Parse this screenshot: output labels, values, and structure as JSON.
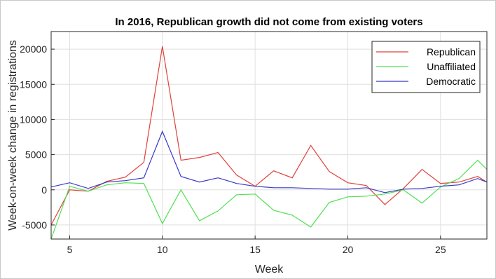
{
  "chart_data": {
    "type": "line",
    "title": "In 2016, Republican growth did not come from existing voters",
    "xlabel": "Week",
    "ylabel": "Week-on-week change in registrations",
    "xlim": [
      4,
      27.5
    ],
    "ylim": [
      -7000,
      22500
    ],
    "xticks": [
      5,
      10,
      15,
      20,
      25
    ],
    "yticks": [
      -5000,
      0,
      5000,
      10000,
      15000,
      20000
    ],
    "grid": true,
    "legend_position": "top-right",
    "x": [
      4,
      5,
      6,
      7,
      8,
      9,
      10,
      11,
      12,
      13,
      14,
      15,
      16,
      17,
      18,
      19,
      20,
      21,
      22,
      23,
      24,
      25,
      26,
      27,
      27.5
    ],
    "series": [
      {
        "name": "Republican",
        "color": "#e0403a",
        "values": [
          -5000,
          0,
          -200,
          1200,
          1800,
          3900,
          20400,
          4200,
          4600,
          5300,
          2100,
          500,
          2700,
          1700,
          6300,
          2600,
          1000,
          600,
          -2100,
          200,
          2900,
          900,
          1100,
          1900,
          1100
        ]
      },
      {
        "name": "Unaffiliated",
        "color": "#50e050",
        "values": [
          -7000,
          500,
          -200,
          700,
          1000,
          900,
          -4800,
          0,
          -4400,
          -3000,
          -700,
          -600,
          -2900,
          -3600,
          -5300,
          -1800,
          -1000,
          -900,
          -600,
          0,
          -1900,
          400,
          1600,
          4200,
          2900
        ]
      },
      {
        "name": "Democratic",
        "color": "#3838c8",
        "values": [
          400,
          1000,
          200,
          1100,
          1300,
          1700,
          8300,
          1900,
          1100,
          1700,
          900,
          500,
          300,
          300,
          200,
          100,
          100,
          300,
          -400,
          100,
          200,
          500,
          700,
          1600,
          1100
        ]
      }
    ]
  }
}
